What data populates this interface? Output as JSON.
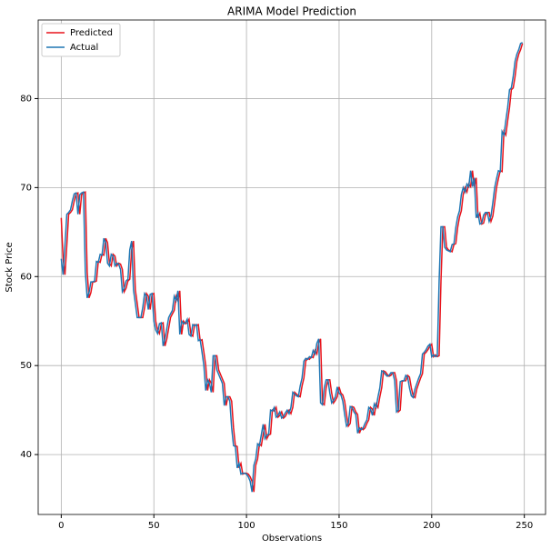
{
  "chart_data": {
    "type": "line",
    "title": "ARIMA Model Prediction",
    "x_label": "Observations",
    "y_label": "Stock Price",
    "x": [
      0,
      1,
      2,
      3,
      4,
      5,
      6,
      7,
      8,
      9,
      10,
      11,
      12,
      13,
      14,
      15,
      16,
      17,
      18,
      19,
      20,
      21,
      22,
      23,
      24,
      25,
      26,
      27,
      28,
      29,
      30,
      31,
      32,
      33,
      34,
      35,
      36,
      37,
      38,
      39,
      40,
      41,
      42,
      43,
      44,
      45,
      46,
      47,
      48,
      49,
      50,
      51,
      52,
      53,
      54,
      55,
      56,
      57,
      58,
      59,
      60,
      61,
      62,
      63,
      64,
      65,
      66,
      67,
      68,
      69,
      70,
      71,
      72,
      73,
      74,
      75,
      76,
      77,
      78,
      79,
      80,
      81,
      82,
      83,
      84,
      85,
      86,
      87,
      88,
      89,
      90,
      91,
      92,
      93,
      94,
      95,
      96,
      97,
      98,
      99,
      100,
      101,
      102,
      103,
      104,
      105,
      106,
      107,
      108,
      109,
      110,
      111,
      112,
      113,
      114,
      115,
      116,
      117,
      118,
      119,
      120,
      121,
      122,
      123,
      124,
      125,
      126,
      127,
      128,
      129,
      130,
      131,
      132,
      133,
      134,
      135,
      136,
      137,
      138,
      139,
      140,
      141,
      142,
      143,
      144,
      145,
      146,
      147,
      148,
      149,
      150,
      151,
      152,
      153,
      154,
      155,
      156,
      157,
      158,
      159,
      160,
      161,
      162,
      163,
      164,
      165,
      166,
      167,
      168,
      169,
      170,
      171,
      172,
      173,
      174,
      175,
      176,
      177,
      178,
      179,
      180,
      181,
      182,
      183,
      184,
      185,
      186,
      187,
      188,
      189,
      190,
      191,
      192,
      193,
      194,
      195,
      196,
      197,
      198,
      199,
      200,
      201,
      202,
      203,
      204,
      205,
      206,
      207,
      208,
      209,
      210,
      211,
      212,
      213,
      214,
      215,
      216,
      217,
      218,
      219,
      220,
      221,
      222,
      223,
      224,
      225,
      226,
      227,
      228,
      229,
      230,
      231,
      232,
      233,
      234,
      235,
      236,
      237,
      238,
      239,
      240,
      241,
      242,
      243,
      244,
      245,
      246,
      247,
      248,
      249
    ],
    "series": [
      {
        "name": "Predicted",
        "color": "#e8141c",
        "values": [
          66.6,
          62,
          60.2,
          63.5,
          67,
          67.2,
          67.5,
          68.5,
          69.3,
          69.4,
          67,
          69.2,
          69.4,
          69.5,
          60.5,
          57.6,
          58.2,
          59.4,
          59.4,
          59.5,
          61.7,
          61.6,
          62.5,
          62.4,
          64.3,
          63.8,
          61.5,
          61.2,
          62.5,
          62.3,
          61.2,
          61.5,
          61.4,
          60.8,
          58.3,
          58.7,
          59.5,
          59.7,
          63,
          64,
          58.5,
          57,
          55.4,
          55.4,
          55.4,
          56.5,
          58.1,
          57.8,
          56.3,
          58,
          58.1,
          55,
          54,
          53.6,
          54.7,
          54.8,
          52.2,
          53,
          54.2,
          55.4,
          55.8,
          56.2,
          57.8,
          57.3,
          58.4,
          53.5,
          55,
          54.7,
          54.8,
          55.2,
          53.5,
          53.3,
          54.6,
          54.5,
          54.6,
          52.8,
          52.9,
          51.5,
          50,
          47.2,
          48.4,
          48,
          47,
          51.1,
          51.1,
          49.5,
          49,
          48.5,
          48,
          45.5,
          46.5,
          46.5,
          46,
          43,
          41,
          40.9,
          38.5,
          39,
          37.8,
          37.9,
          37.9,
          37.8,
          37.5,
          37,
          35.8,
          38.8,
          39.5,
          41.2,
          41,
          42.2,
          43.4,
          41.8,
          42.2,
          42.3,
          45,
          44.9,
          45.3,
          44.2,
          44.4,
          44.8,
          44.1,
          44.3,
          44.7,
          45,
          44.6,
          45.3,
          47,
          46.8,
          46.6,
          46.5,
          47.7,
          48.6,
          50.5,
          50.8,
          50.7,
          51,
          50.9,
          51.7,
          51.3,
          52.5,
          53,
          45.8,
          45.6,
          47.5,
          48.4,
          48.4,
          46.9,
          45.8,
          46.1,
          46.5,
          47.6,
          46.9,
          46.7,
          46,
          44.5,
          43.2,
          43.5,
          45.4,
          45.3,
          44.8,
          44.5,
          42.4,
          43,
          42.8,
          43,
          43.5,
          43.9,
          45.3,
          45.1,
          44.4,
          45.7,
          45.3,
          46.5,
          47.5,
          49.4,
          49.3,
          49,
          48.8,
          48.9,
          49.2,
          49.2,
          48.3,
          44.8,
          45,
          48.2,
          48.3,
          48.3,
          48.9,
          48.7,
          47.5,
          46.6,
          46.4,
          47.4,
          48,
          48.6,
          49.1,
          51.3,
          51.5,
          51.8,
          52.2,
          52.4,
          51,
          51.2,
          51,
          51.1,
          59.5,
          65.6,
          65.6,
          63.3,
          63,
          62.9,
          62.8,
          63.6,
          63.7,
          65.5,
          66.7,
          67.4,
          69.2,
          70,
          69.5,
          70.4,
          70.1,
          71.9,
          70.1,
          71.1,
          66.6,
          67.1,
          65.9,
          66,
          66.9,
          67.2,
          67.2,
          66.2,
          66.8,
          68.3,
          70,
          71,
          71.9,
          71.8,
          76.3,
          75.9,
          77.5,
          79,
          81,
          81.2,
          82.5,
          84.2,
          85,
          85.5,
          86.2
        ]
      },
      {
        "name": "Actual",
        "color": "#1f77b4",
        "values": [
          62,
          60.2,
          63.5,
          67,
          67.2,
          67.5,
          68.5,
          69.3,
          69.4,
          67,
          69.2,
          69.4,
          69.5,
          60.5,
          57.6,
          58.2,
          59.4,
          59.4,
          59.5,
          61.7,
          61.6,
          62.5,
          62.4,
          64.3,
          63.8,
          61.5,
          61.2,
          62.5,
          62.3,
          61.2,
          61.5,
          61.4,
          60.8,
          58.3,
          58.7,
          59.5,
          59.7,
          63,
          64,
          58.5,
          57,
          55.4,
          55.4,
          55.4,
          56.5,
          58.1,
          57.8,
          56.3,
          58,
          58.1,
          55,
          54,
          53.6,
          54.7,
          54.8,
          52.2,
          53,
          54.2,
          55.4,
          55.8,
          56.2,
          57.8,
          57.3,
          58.4,
          53.5,
          55,
          54.7,
          54.8,
          55.2,
          53.5,
          53.3,
          54.6,
          54.5,
          54.6,
          52.8,
          52.9,
          51.5,
          50,
          47.2,
          48.4,
          48,
          47,
          51.1,
          51.1,
          49.5,
          49,
          48.5,
          48,
          45.5,
          46.5,
          46.5,
          46,
          43,
          41,
          40.9,
          38.5,
          39,
          37.8,
          37.9,
          37.9,
          37.8,
          37.5,
          37,
          35.8,
          38.8,
          39.5,
          41.2,
          41,
          42.2,
          43.4,
          41.8,
          42.2,
          42.3,
          45,
          44.9,
          45.3,
          44.2,
          44.4,
          44.8,
          44.1,
          44.3,
          44.7,
          45,
          44.6,
          45.3,
          47,
          46.8,
          46.6,
          46.5,
          47.7,
          48.6,
          50.5,
          50.8,
          50.7,
          51,
          50.9,
          51.7,
          51.3,
          52.5,
          53,
          45.8,
          45.6,
          47.5,
          48.4,
          48.4,
          46.9,
          45.8,
          46.1,
          46.5,
          47.6,
          46.9,
          46.7,
          46,
          44.5,
          43.2,
          43.5,
          45.4,
          45.3,
          44.8,
          44.5,
          42.4,
          43,
          42.8,
          43,
          43.5,
          43.9,
          45.3,
          45.1,
          44.4,
          45.7,
          45.3,
          46.5,
          47.5,
          49.4,
          49.3,
          49,
          48.8,
          48.9,
          49.2,
          49.2,
          48.3,
          44.8,
          45,
          48.2,
          48.3,
          48.3,
          48.9,
          48.7,
          47.5,
          46.6,
          46.4,
          47.4,
          48,
          48.6,
          49.1,
          51.3,
          51.5,
          51.8,
          52.2,
          52.4,
          51,
          51.2,
          51,
          51.1,
          59.5,
          65.6,
          65.6,
          63.3,
          63,
          62.9,
          62.8,
          63.6,
          63.7,
          65.5,
          66.7,
          67.4,
          69.2,
          70,
          69.5,
          70.4,
          70.1,
          71.9,
          70.1,
          71.1,
          66.6,
          67.1,
          65.9,
          66,
          66.9,
          67.2,
          67.2,
          66.2,
          66.8,
          68.3,
          70,
          71,
          71.9,
          71.8,
          76.3,
          75.9,
          77.5,
          79,
          81,
          81.2,
          82.5,
          84.2,
          85,
          85.5,
          86.2,
          86.3
        ]
      }
    ],
    "xlim": [
      -12.45,
      261.45
    ],
    "xticks": [
      0,
      50,
      100,
      150,
      200,
      250
    ],
    "ylim": [
      33.27,
      88.83
    ],
    "yticks": [
      40,
      50,
      60,
      70,
      80
    ],
    "grid": true,
    "legend": "upper left"
  }
}
